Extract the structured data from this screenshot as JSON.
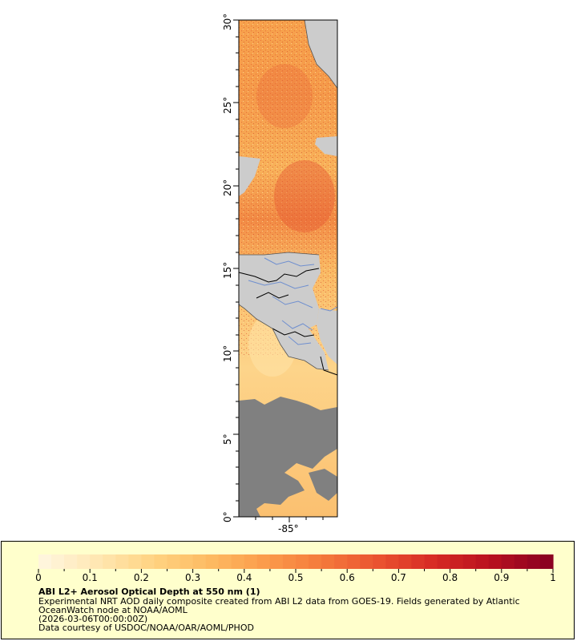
{
  "map": {
    "lat_ticks": [
      "0°",
      "5°",
      "10°",
      "15°",
      "20°",
      "25°",
      "30°"
    ],
    "lon_ticks": [
      "-85°"
    ],
    "land_color": "#cccccc",
    "nodata_color": "#808080",
    "border_color": "#000000",
    "river_color": "#6f8fcf"
  },
  "legend": {
    "title": "ABI L2+ Aerosol Optical Depth at 550 nm (1)",
    "line1": "Experimental NRT AOD daily composite created from ABI L2 data from GOES-19. Fields generated by Atlantic",
    "line2": "OceanWatch node at NOAA/AOML",
    "line3": "(2026-03-06T00:00:00Z)",
    "line4": "Data courtesy of USDOC/NOAA/OAR/AOML/PHOD",
    "background": "#ffffcc"
  },
  "colorbar": {
    "ticks": [
      "0",
      "0.1",
      "0.2",
      "0.3",
      "0.4",
      "0.5",
      "0.6",
      "0.7",
      "0.8",
      "0.9",
      "1"
    ],
    "colors": [
      "#fff5dc",
      "#ffe6b0",
      "#ffd27f",
      "#fdb961",
      "#fb9a4a",
      "#f4793b",
      "#ea5230",
      "#d62a24",
      "#b8101f",
      "#8c0221"
    ]
  }
}
